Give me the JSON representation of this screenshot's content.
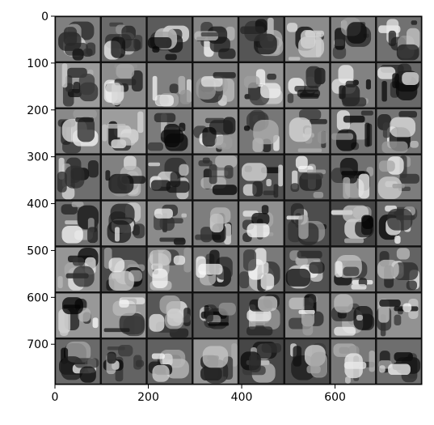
{
  "chart_data": {
    "type": "image",
    "xlim": [
      0,
      786
    ],
    "ylim": [
      786,
      0
    ],
    "xticks": [
      0,
      200,
      400,
      600
    ],
    "yticks": [
      0,
      100,
      200,
      300,
      400,
      500,
      600,
      700
    ]
  }
}
